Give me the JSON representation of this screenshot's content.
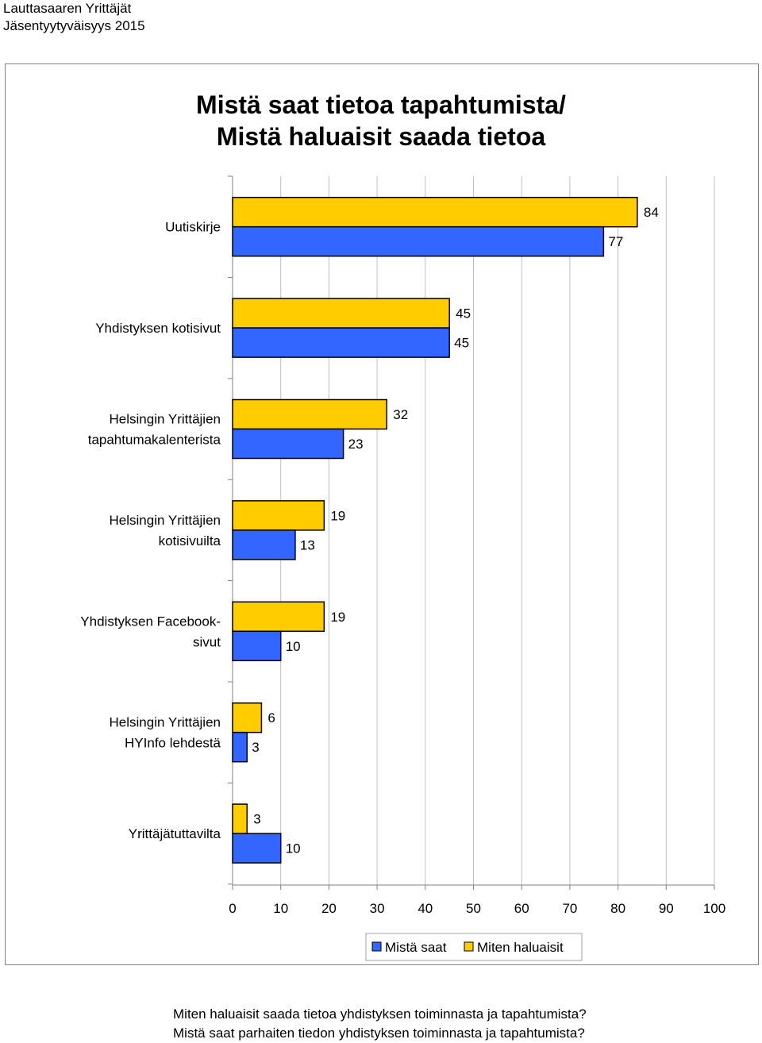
{
  "header": {
    "line1": "Lauttasaaren Yrittäjät",
    "line2": "Jäsentyytyväisyys 2015"
  },
  "chart_data": {
    "type": "bar",
    "orientation": "horizontal",
    "title_line1": "Mistä saat tietoa tapahtumista/",
    "title_line2": "Mistä haluaisit saada tietoa",
    "categories": [
      [
        "Uutiskirje"
      ],
      [
        "Yhdistyksen kotisivut"
      ],
      [
        "Helsingin Yrittäjien",
        "tapahtumakalenterista"
      ],
      [
        "Helsingin Yrittäjien",
        "kotisivuilta"
      ],
      [
        "Yhdistyksen Facebook-",
        "sivut"
      ],
      [
        "Helsingin Yrittäjien",
        "HYInfo lehdestä"
      ],
      [
        "Yrittäjätuttavilta"
      ]
    ],
    "series": [
      {
        "name": "Mistä saat",
        "color": "#3366ff",
        "values": [
          77,
          45,
          23,
          13,
          10,
          3,
          10
        ]
      },
      {
        "name": "Miten haluaisit",
        "color": "#ffcc00",
        "values": [
          84,
          45,
          32,
          19,
          19,
          6,
          3
        ]
      }
    ],
    "xlim": [
      0,
      100
    ],
    "xticks": [
      "0",
      "10",
      "20",
      "30",
      "40",
      "50",
      "60",
      "70",
      "80",
      "90",
      "100"
    ],
    "grid": true,
    "legend_position": "bottom"
  },
  "footer": {
    "line1": "Miten haluaisit saada tietoa yhdistyksen toiminnasta ja tapahtumista?",
    "line2": "Mistä saat parhaiten tiedon yhdistyksen toiminnasta ja tapahtumista?"
  }
}
